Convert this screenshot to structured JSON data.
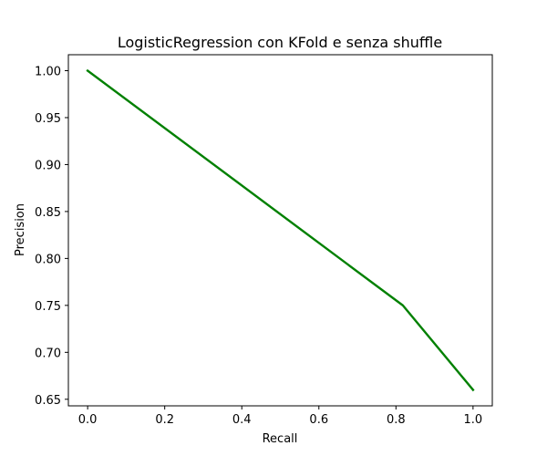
{
  "chart_data": {
    "type": "line",
    "title": "LogisticRegression  con KFold e senza shuffle",
    "xlabel": "Recall",
    "ylabel": "Precision",
    "xlim": [
      -0.05,
      1.05
    ],
    "ylim": [
      0.643,
      1.017
    ],
    "x_ticks": [
      0.0,
      0.2,
      0.4,
      0.6,
      0.8,
      1.0
    ],
    "x_tick_labels": [
      "0.0",
      "0.2",
      "0.4",
      "0.6",
      "0.8",
      "1.0"
    ],
    "y_ticks": [
      0.65,
      0.7,
      0.75,
      0.8,
      0.85,
      0.9,
      0.95,
      1.0
    ],
    "y_tick_labels": [
      "0.65",
      "0.70",
      "0.75",
      "0.80",
      "0.85",
      "0.90",
      "0.95",
      "1.00"
    ],
    "grid": false,
    "series": [
      {
        "color": "#008000",
        "x": [
          0.0,
          0.818,
          1.0
        ],
        "y": [
          1.0,
          0.75,
          0.66
        ]
      }
    ]
  }
}
